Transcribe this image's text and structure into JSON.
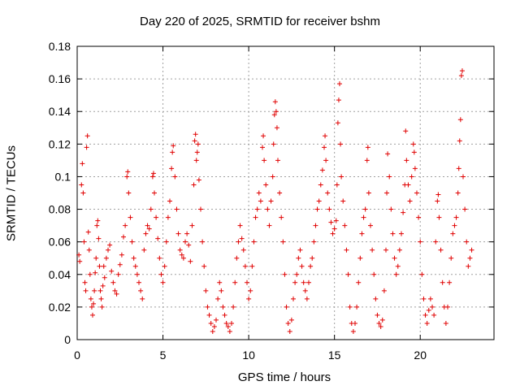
{
  "chart_data": {
    "type": "scatter",
    "title": "Day 220 of 2025, SRMTID for receiver bshm",
    "xlabel": "GPS time / hours",
    "ylabel": "SRMTID / TECUs",
    "xlim": [
      0,
      24.3
    ],
    "ylim": [
      0,
      0.18
    ],
    "xticks": [
      0,
      5,
      10,
      15,
      20
    ],
    "xtick_labels": [
      "0",
      "5",
      "10",
      "15",
      "20"
    ],
    "yticks": [
      0,
      0.02,
      0.04,
      0.06,
      0.08,
      0.1,
      0.12,
      0.14,
      0.16,
      0.18
    ],
    "ytick_labels": [
      "0",
      "0.02",
      "0.04",
      "0.06",
      "0.08",
      "0.1",
      "0.12",
      "0.14",
      "0.16",
      "0.18"
    ],
    "grid": true,
    "marker": "+",
    "color": "#e00000",
    "series": [
      {
        "name": "SRMTID",
        "points": [
          [
            0.1,
            0.052
          ],
          [
            0.15,
            0.048
          ],
          [
            0.25,
            0.095
          ],
          [
            0.3,
            0.108
          ],
          [
            0.35,
            0.09
          ],
          [
            0.4,
            0.06
          ],
          [
            0.45,
            0.035
          ],
          [
            0.5,
            0.03
          ],
          [
            0.55,
            0.118
          ],
          [
            0.6,
            0.125
          ],
          [
            0.65,
            0.066
          ],
          [
            0.7,
            0.055
          ],
          [
            0.75,
            0.04
          ],
          [
            0.8,
            0.025
          ],
          [
            0.85,
            0.02
          ],
          [
            0.9,
            0.015
          ],
          [
            0.95,
            0.022
          ],
          [
            1.0,
            0.03
          ],
          [
            1.05,
            0.041
          ],
          [
            1.1,
            0.05
          ],
          [
            1.15,
            0.07
          ],
          [
            1.2,
            0.073
          ],
          [
            1.25,
            0.062
          ],
          [
            1.3,
            0.045
          ],
          [
            1.35,
            0.03
          ],
          [
            1.4,
            0.025
          ],
          [
            1.45,
            0.02
          ],
          [
            1.5,
            0.033
          ],
          [
            1.55,
            0.045
          ],
          [
            1.6,
            0.038
          ],
          [
            1.7,
            0.05
          ],
          [
            1.8,
            0.055
          ],
          [
            1.9,
            0.058
          ],
          [
            2.0,
            0.042
          ],
          [
            2.1,
            0.035
          ],
          [
            2.2,
            0.03
          ],
          [
            2.3,
            0.028
          ],
          [
            2.4,
            0.04
          ],
          [
            2.5,
            0.046
          ],
          [
            2.6,
            0.052
          ],
          [
            2.7,
            0.063
          ],
          [
            2.8,
            0.07
          ],
          [
            2.9,
            0.1
          ],
          [
            2.95,
            0.103
          ],
          [
            3.0,
            0.09
          ],
          [
            3.1,
            0.075
          ],
          [
            3.2,
            0.06
          ],
          [
            3.3,
            0.05
          ],
          [
            3.4,
            0.045
          ],
          [
            3.5,
            0.04
          ],
          [
            3.6,
            0.035
          ],
          [
            3.7,
            0.03
          ],
          [
            3.8,
            0.025
          ],
          [
            3.9,
            0.055
          ],
          [
            4.0,
            0.065
          ],
          [
            4.1,
            0.07
          ],
          [
            4.2,
            0.068
          ],
          [
            4.3,
            0.08
          ],
          [
            4.4,
            0.1
          ],
          [
            4.45,
            0.102
          ],
          [
            4.5,
            0.09
          ],
          [
            4.6,
            0.075
          ],
          [
            4.7,
            0.062
          ],
          [
            4.8,
            0.05
          ],
          [
            4.9,
            0.04
          ],
          [
            5.0,
            0.035
          ],
          [
            5.1,
            0.045
          ],
          [
            5.2,
            0.06
          ],
          [
            5.3,
            0.075
          ],
          [
            5.4,
            0.085
          ],
          [
            5.5,
            0.105
          ],
          [
            5.55,
            0.115
          ],
          [
            5.6,
            0.119
          ],
          [
            5.7,
            0.1
          ],
          [
            5.8,
            0.08
          ],
          [
            5.9,
            0.065
          ],
          [
            6.0,
            0.055
          ],
          [
            6.1,
            0.052
          ],
          [
            6.2,
            0.05
          ],
          [
            6.3,
            0.06
          ],
          [
            6.4,
            0.065
          ],
          [
            6.5,
            0.058
          ],
          [
            6.6,
            0.048
          ],
          [
            6.7,
            0.07
          ],
          [
            6.8,
            0.095
          ],
          [
            6.85,
            0.122
          ],
          [
            6.9,
            0.126
          ],
          [
            6.95,
            0.11
          ],
          [
            7.0,
            0.115
          ],
          [
            7.05,
            0.12
          ],
          [
            7.1,
            0.098
          ],
          [
            7.2,
            0.08
          ],
          [
            7.3,
            0.06
          ],
          [
            7.4,
            0.045
          ],
          [
            7.5,
            0.03
          ],
          [
            7.6,
            0.02
          ],
          [
            7.7,
            0.015
          ],
          [
            7.8,
            0.01
          ],
          [
            7.9,
            0.005
          ],
          [
            8.0,
            0.008
          ],
          [
            8.1,
            0.012
          ],
          [
            8.2,
            0.025
          ],
          [
            8.3,
            0.035
          ],
          [
            8.4,
            0.03
          ],
          [
            8.5,
            0.02
          ],
          [
            8.6,
            0.015
          ],
          [
            8.7,
            0.01
          ],
          [
            8.8,
            0.008
          ],
          [
            8.9,
            0.005
          ],
          [
            9.0,
            0.01
          ],
          [
            9.1,
            0.02
          ],
          [
            9.2,
            0.035
          ],
          [
            9.3,
            0.05
          ],
          [
            9.4,
            0.06
          ],
          [
            9.5,
            0.07
          ],
          [
            9.6,
            0.062
          ],
          [
            9.7,
            0.055
          ],
          [
            9.8,
            0.045
          ],
          [
            9.9,
            0.035
          ],
          [
            10.0,
            0.025
          ],
          [
            10.1,
            0.03
          ],
          [
            10.2,
            0.045
          ],
          [
            10.3,
            0.06
          ],
          [
            10.4,
            0.075
          ],
          [
            10.5,
            0.08
          ],
          [
            10.6,
            0.09
          ],
          [
            10.7,
            0.085
          ],
          [
            10.8,
            0.118
          ],
          [
            10.85,
            0.125
          ],
          [
            10.9,
            0.11
          ],
          [
            11.0,
            0.095
          ],
          [
            11.1,
            0.08
          ],
          [
            11.2,
            0.07
          ],
          [
            11.3,
            0.085
          ],
          [
            11.4,
            0.1
          ],
          [
            11.45,
            0.12
          ],
          [
            11.5,
            0.138
          ],
          [
            11.55,
            0.146
          ],
          [
            11.6,
            0.14
          ],
          [
            11.65,
            0.13
          ],
          [
            11.7,
            0.11
          ],
          [
            11.8,
            0.09
          ],
          [
            11.9,
            0.075
          ],
          [
            12.0,
            0.06
          ],
          [
            12.1,
            0.04
          ],
          [
            12.2,
            0.02
          ],
          [
            12.3,
            0.01
          ],
          [
            12.4,
            0.005
          ],
          [
            12.5,
            0.012
          ],
          [
            12.6,
            0.025
          ],
          [
            12.7,
            0.035
          ],
          [
            12.8,
            0.04
          ],
          [
            12.9,
            0.05
          ],
          [
            13.0,
            0.055
          ],
          [
            13.1,
            0.045
          ],
          [
            13.2,
            0.035
          ],
          [
            13.3,
            0.03
          ],
          [
            13.4,
            0.025
          ],
          [
            13.5,
            0.035
          ],
          [
            13.6,
            0.045
          ],
          [
            13.7,
            0.05
          ],
          [
            13.8,
            0.06
          ],
          [
            13.9,
            0.07
          ],
          [
            14.0,
            0.08
          ],
          [
            14.1,
            0.085
          ],
          [
            14.2,
            0.095
          ],
          [
            14.3,
            0.104
          ],
          [
            14.4,
            0.118
          ],
          [
            14.45,
            0.125
          ],
          [
            14.5,
            0.11
          ],
          [
            14.6,
            0.09
          ],
          [
            14.7,
            0.08
          ],
          [
            14.8,
            0.072
          ],
          [
            14.9,
            0.065
          ],
          [
            15.0,
            0.068
          ],
          [
            15.1,
            0.073
          ],
          [
            15.15,
            0.095
          ],
          [
            15.2,
            0.133
          ],
          [
            15.25,
            0.147
          ],
          [
            15.3,
            0.157
          ],
          [
            15.35,
            0.12
          ],
          [
            15.4,
            0.1
          ],
          [
            15.5,
            0.085
          ],
          [
            15.6,
            0.07
          ],
          [
            15.7,
            0.055
          ],
          [
            15.8,
            0.04
          ],
          [
            15.9,
            0.02
          ],
          [
            16.0,
            0.01
          ],
          [
            16.1,
            0.005
          ],
          [
            16.2,
            0.01
          ],
          [
            16.3,
            0.02
          ],
          [
            16.4,
            0.035
          ],
          [
            16.5,
            0.05
          ],
          [
            16.6,
            0.065
          ],
          [
            16.7,
            0.075
          ],
          [
            16.8,
            0.08
          ],
          [
            16.9,
            0.11
          ],
          [
            16.95,
            0.118
          ],
          [
            17.0,
            0.09
          ],
          [
            17.1,
            0.07
          ],
          [
            17.2,
            0.055
          ],
          [
            17.3,
            0.04
          ],
          [
            17.4,
            0.025
          ],
          [
            17.5,
            0.015
          ],
          [
            17.6,
            0.01
          ],
          [
            17.7,
            0.008
          ],
          [
            17.8,
            0.012
          ],
          [
            17.9,
            0.03
          ],
          [
            18.0,
            0.055
          ],
          [
            18.05,
            0.09
          ],
          [
            18.1,
            0.114
          ],
          [
            18.2,
            0.1
          ],
          [
            18.3,
            0.08
          ],
          [
            18.4,
            0.065
          ],
          [
            18.5,
            0.05
          ],
          [
            18.6,
            0.04
          ],
          [
            18.7,
            0.045
          ],
          [
            18.8,
            0.055
          ],
          [
            18.9,
            0.065
          ],
          [
            19.0,
            0.078
          ],
          [
            19.1,
            0.095
          ],
          [
            19.15,
            0.128
          ],
          [
            19.2,
            0.11
          ],
          [
            19.3,
            0.095
          ],
          [
            19.4,
            0.085
          ],
          [
            19.5,
            0.1
          ],
          [
            19.6,
            0.12
          ],
          [
            19.65,
            0.115
          ],
          [
            19.7,
            0.105
          ],
          [
            19.8,
            0.09
          ],
          [
            19.9,
            0.075
          ],
          [
            20.0,
            0.06
          ],
          [
            20.1,
            0.04
          ],
          [
            20.2,
            0.025
          ],
          [
            20.3,
            0.015
          ],
          [
            20.4,
            0.01
          ],
          [
            20.5,
            0.018
          ],
          [
            20.6,
            0.025
          ],
          [
            20.7,
            0.02
          ],
          [
            20.8,
            0.015
          ],
          [
            20.9,
            0.06
          ],
          [
            21.0,
            0.085
          ],
          [
            21.05,
            0.089
          ],
          [
            21.1,
            0.075
          ],
          [
            21.2,
            0.055
          ],
          [
            21.3,
            0.035
          ],
          [
            21.4,
            0.02
          ],
          [
            21.5,
            0.01
          ],
          [
            21.6,
            0.02
          ],
          [
            21.7,
            0.035
          ],
          [
            21.8,
            0.05
          ],
          [
            21.9,
            0.065
          ],
          [
            22.0,
            0.07
          ],
          [
            22.1,
            0.075
          ],
          [
            22.2,
            0.09
          ],
          [
            22.25,
            0.105
          ],
          [
            22.3,
            0.122
          ],
          [
            22.35,
            0.135
          ],
          [
            22.4,
            0.162
          ],
          [
            22.45,
            0.165
          ],
          [
            22.5,
            0.1
          ],
          [
            22.6,
            0.08
          ],
          [
            22.7,
            0.06
          ],
          [
            22.8,
            0.045
          ],
          [
            22.9,
            0.05
          ],
          [
            23.0,
            0.055
          ]
        ]
      }
    ]
  }
}
